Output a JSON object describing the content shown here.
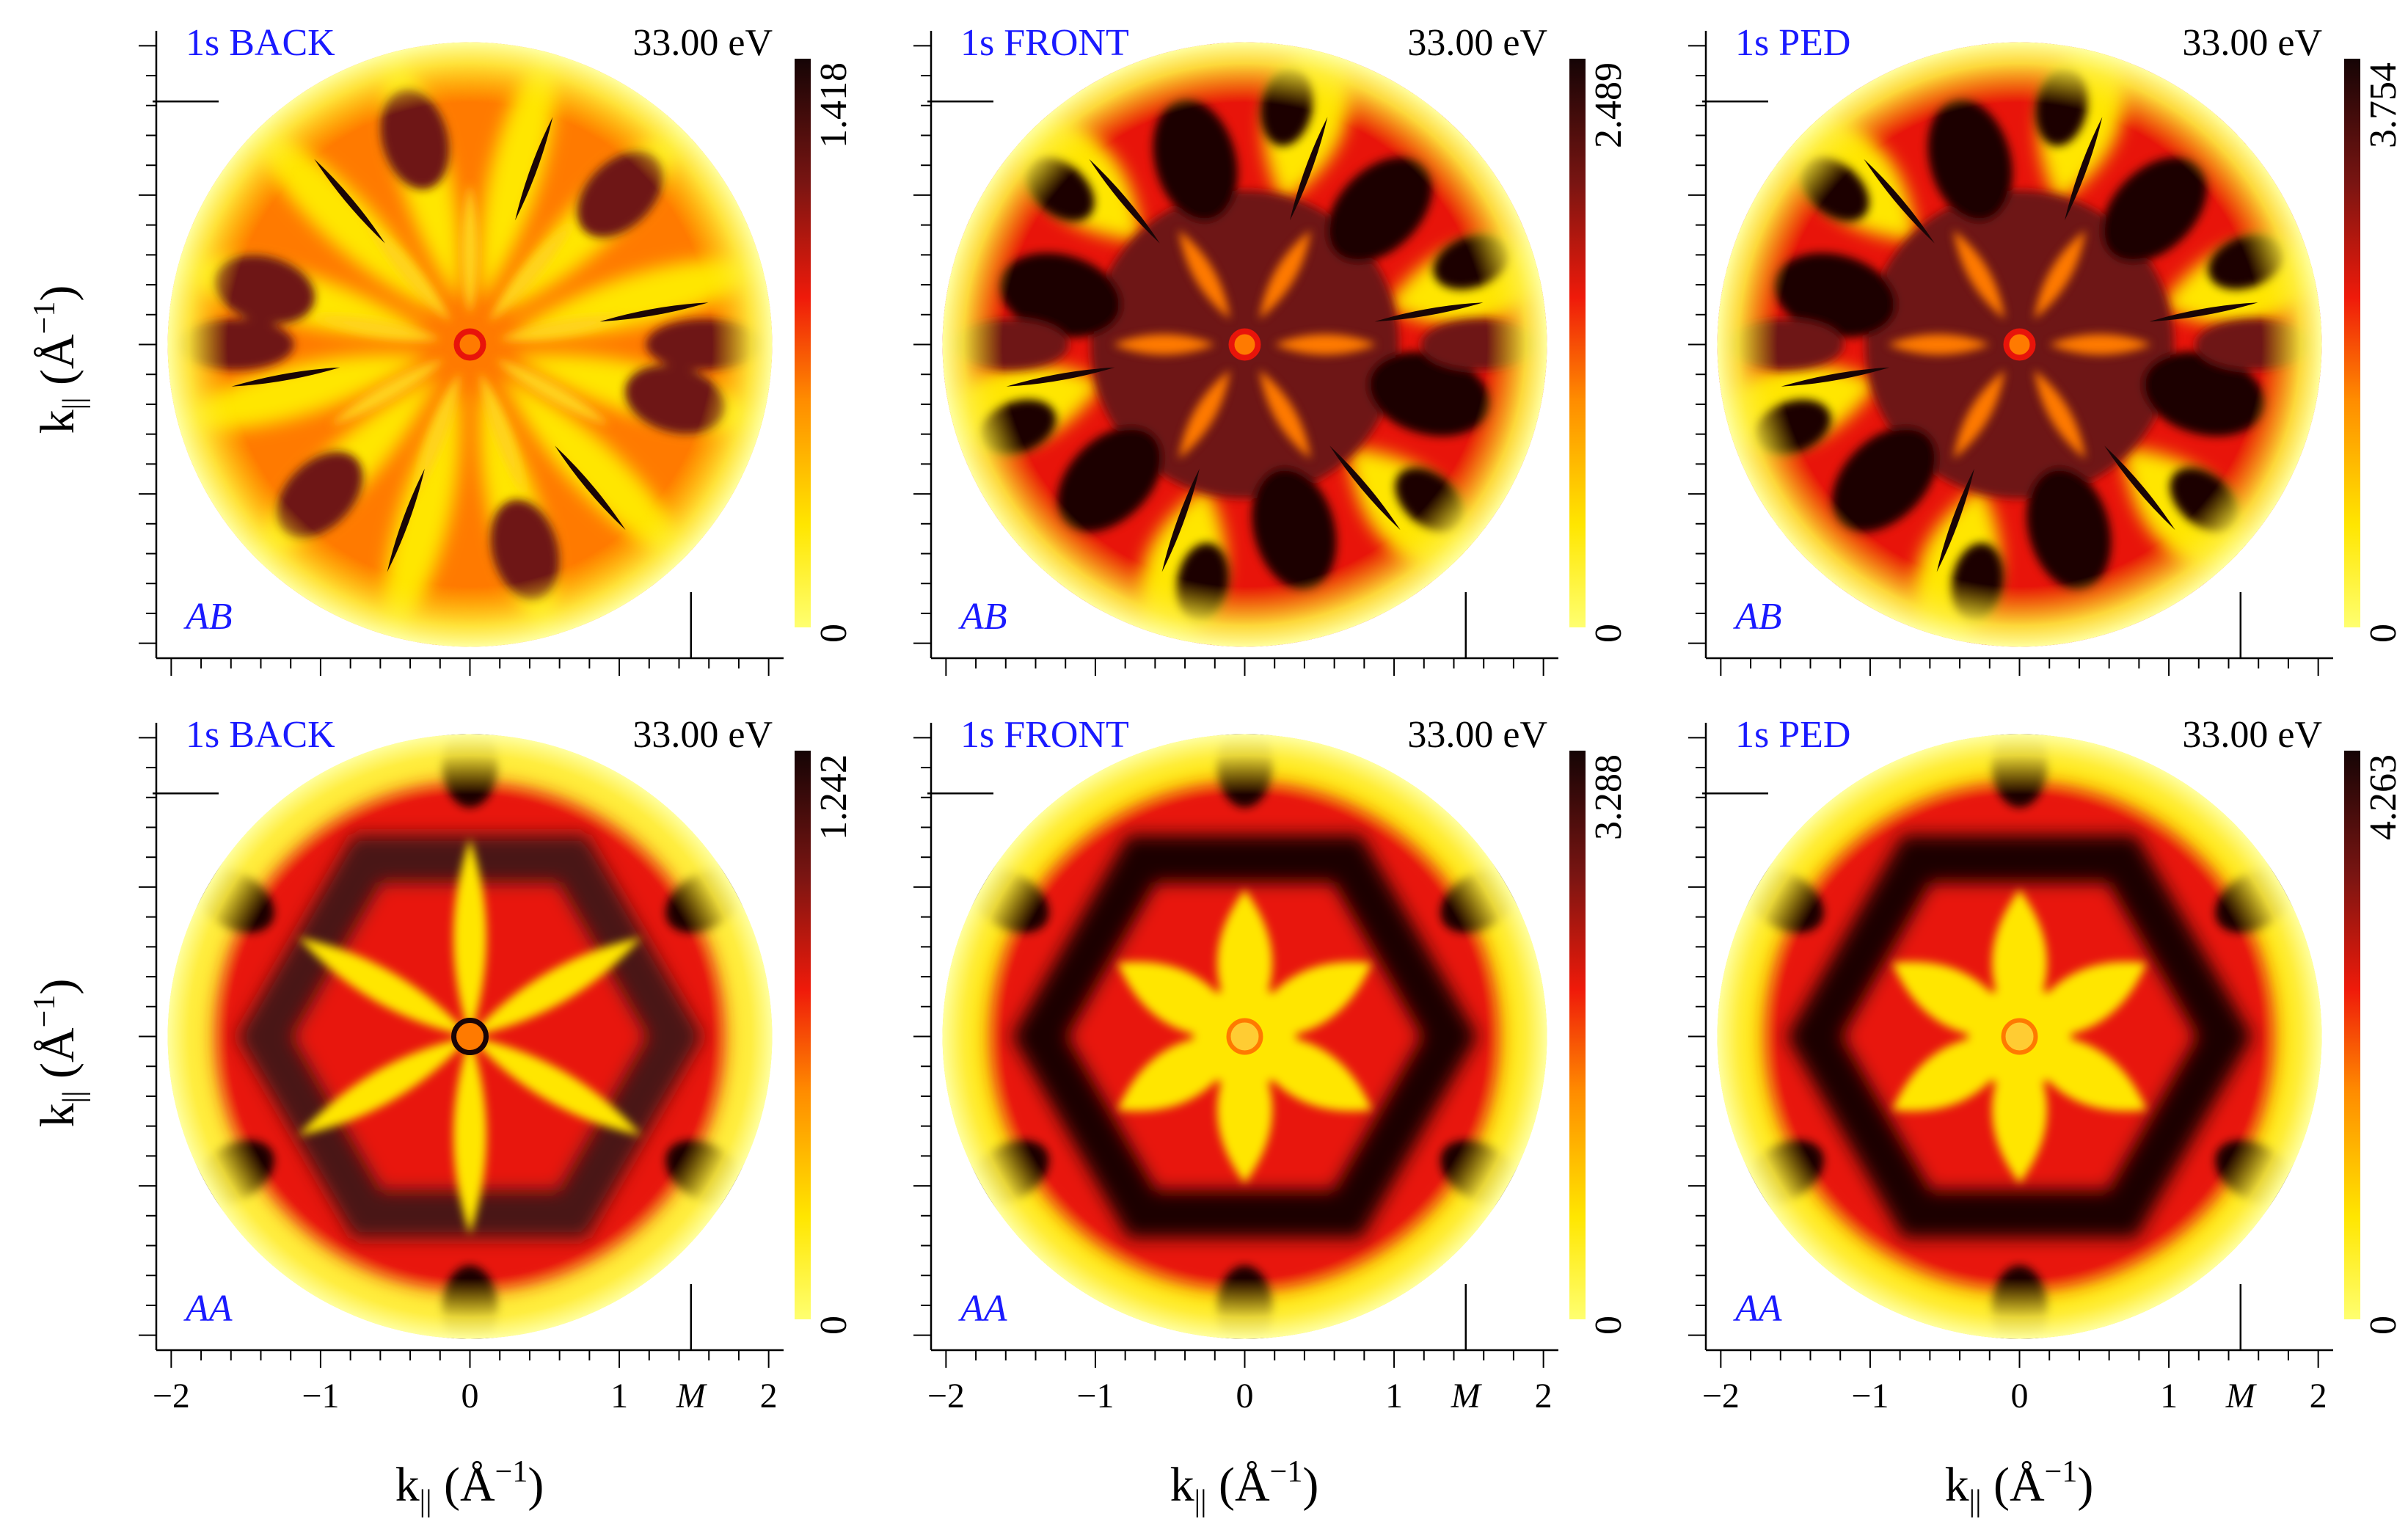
{
  "figure": {
    "xlabel_text": "k",
    "xlabel_sub": "||",
    "xlabel_units_open": " (Å",
    "xlabel_units_exp": "−1",
    "xlabel_units_close": ")",
    "ylabel_text": "k",
    "ylabel_sub": "||",
    "ylabel_units_open": " (Å",
    "ylabel_units_exp": "−1",
    "ylabel_units_close": ")"
  },
  "chart_data": [
    {
      "type": "heatmap",
      "row": 0,
      "col": 0,
      "title": "1s BACK",
      "energy": "33.00 eV",
      "stacking": "AB",
      "colorbar_max": "1.418",
      "colorbar_min": "0",
      "symmetry": "threefold",
      "xlim": [
        -2.1,
        2.1
      ],
      "ylim": [
        -2.1,
        2.1
      ],
      "x_ticks": [
        "−2",
        "−1",
        "0",
        "1",
        "2"
      ],
      "x_tick_values": [
        -2,
        -1,
        0,
        1,
        2
      ],
      "point_label": "M",
      "point_value": 1.48
    },
    {
      "type": "heatmap",
      "row": 0,
      "col": 1,
      "title": "1s FRONT",
      "energy": "33.00 eV",
      "stacking": "AB",
      "colorbar_max": "2.489",
      "colorbar_min": "0",
      "symmetry": "threefold",
      "xlim": [
        -2.1,
        2.1
      ],
      "ylim": [
        -2.1,
        2.1
      ],
      "x_ticks": [
        "−2",
        "−1",
        "0",
        "1",
        "2"
      ],
      "x_tick_values": [
        -2,
        -1,
        0,
        1,
        2
      ],
      "point_label": "M",
      "point_value": 1.48
    },
    {
      "type": "heatmap",
      "row": 0,
      "col": 2,
      "title": "1s PED",
      "energy": "33.00 eV",
      "stacking": "AB",
      "colorbar_max": "3.754",
      "colorbar_min": "0",
      "symmetry": "threefold",
      "xlim": [
        -2.1,
        2.1
      ],
      "ylim": [
        -2.1,
        2.1
      ],
      "x_ticks": [
        "−2",
        "−1",
        "0",
        "1",
        "2"
      ],
      "x_tick_values": [
        -2,
        -1,
        0,
        1,
        2
      ],
      "point_label": "M",
      "point_value": 1.48
    },
    {
      "type": "heatmap",
      "row": 1,
      "col": 0,
      "title": "1s BACK",
      "energy": "33.00 eV",
      "stacking": "AA",
      "colorbar_max": "1.242",
      "colorbar_min": "0",
      "symmetry": "sixfold",
      "xlim": [
        -2.1,
        2.1
      ],
      "ylim": [
        -2.1,
        2.1
      ],
      "x_ticks": [
        "−2",
        "−1",
        "0",
        "1",
        "2"
      ],
      "x_tick_values": [
        -2,
        -1,
        0,
        1,
        2
      ],
      "point_label": "M",
      "point_value": 1.48
    },
    {
      "type": "heatmap",
      "row": 1,
      "col": 1,
      "title": "1s FRONT",
      "energy": "33.00 eV",
      "stacking": "AA",
      "colorbar_max": "3.288",
      "colorbar_min": "0",
      "symmetry": "sixfold",
      "xlim": [
        -2.1,
        2.1
      ],
      "ylim": [
        -2.1,
        2.1
      ],
      "x_ticks": [
        "−2",
        "−1",
        "0",
        "1",
        "2"
      ],
      "x_tick_values": [
        -2,
        -1,
        0,
        1,
        2
      ],
      "point_label": "M",
      "point_value": 1.48
    },
    {
      "type": "heatmap",
      "row": 1,
      "col": 2,
      "title": "1s PED",
      "energy": "33.00 eV",
      "stacking": "AA",
      "colorbar_max": "4.263",
      "colorbar_min": "0",
      "symmetry": "sixfold",
      "xlim": [
        -2.1,
        2.1
      ],
      "ylim": [
        -2.1,
        2.1
      ],
      "x_ticks": [
        "−2",
        "−1",
        "0",
        "1",
        "2"
      ],
      "x_tick_values": [
        -2,
        -1,
        0,
        1,
        2
      ],
      "point_label": "M",
      "point_value": 1.48
    }
  ],
  "colors": {
    "dark": "#1a0506",
    "deep": "#6e1512",
    "red": "#e8140a",
    "orange": "#ff7a00",
    "yellow": "#ffe600",
    "white": "#ffffd0",
    "title_blue": "#1a1aff"
  }
}
